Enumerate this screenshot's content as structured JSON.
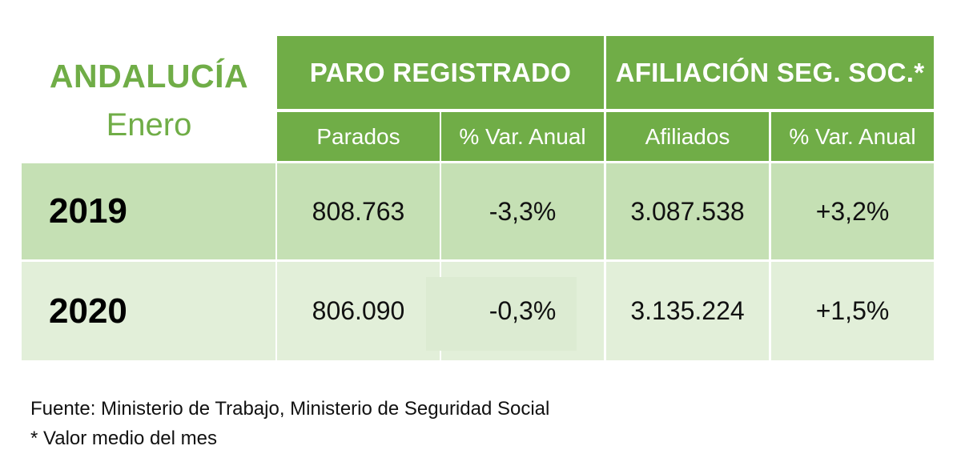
{
  "title": "ANDALUCÍA",
  "subtitle": "Enero",
  "header": {
    "group_paro": "PARO REGISTRADO",
    "group_afiliacion": "AFILIACIÓN SEG. SOC.*",
    "col_parados": "Parados",
    "col_var_paro": "% Var. Anual",
    "col_afiliados": "Afiliados",
    "col_var_afiliacion": "% Var. Anual"
  },
  "rows": [
    {
      "year": "2019",
      "parados": "808.763",
      "var_paro": "-3,3%",
      "afiliados": "3.087.538",
      "var_afiliacion": "+3,2%"
    },
    {
      "year": "2020",
      "parados": "806.090",
      "var_paro": "-0,3%",
      "afiliados": "3.135.224",
      "var_afiliacion": "+1,5%"
    }
  ],
  "footnotes": {
    "source": "Fuente: Ministerio de Trabajo, Ministerio de Seguridad Social",
    "note": "* Valor medio del mes"
  },
  "colors": {
    "header_green": "#70ad47",
    "row_dark": "#c5e0b4",
    "row_light": "#e2efd9"
  },
  "chart_data": {
    "type": "table",
    "title": "ANDALUCÍA",
    "subtitle": "Enero",
    "column_groups": [
      "PARO REGISTRADO",
      "AFILIACIÓN SEG. SOC.*"
    ],
    "columns": [
      "Parados",
      "% Var. Anual",
      "Afiliados",
      "% Var. Anual"
    ],
    "categories": [
      "2019",
      "2020"
    ],
    "series": [
      {
        "name": "Parados",
        "values": [
          808763,
          806090
        ]
      },
      {
        "name": "% Var. Anual",
        "values": [
          -3.3,
          -0.3
        ]
      },
      {
        "name": "Afiliados",
        "values": [
          3087538,
          3135224
        ]
      },
      {
        "name": "% Var. Anual",
        "values": [
          3.2,
          1.5
        ]
      }
    ]
  }
}
